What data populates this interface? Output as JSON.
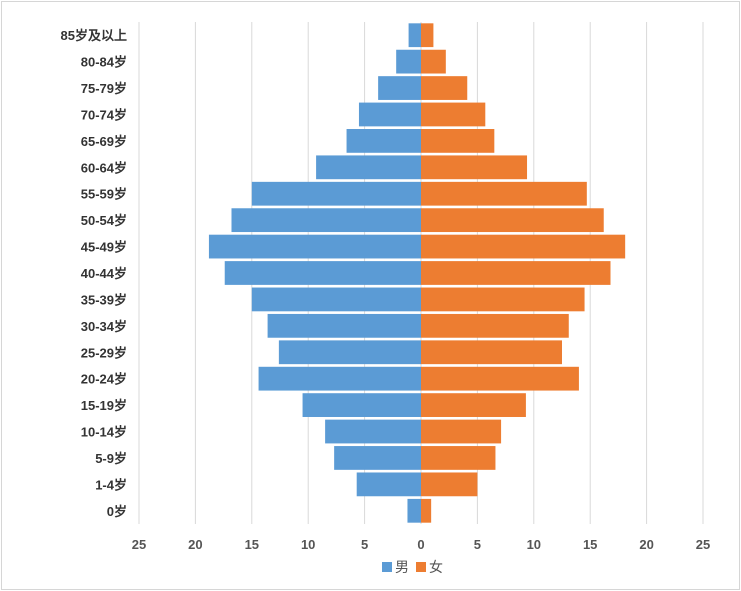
{
  "chart_data": {
    "type": "bar",
    "orientation": "horizontal",
    "layout": "population-pyramid",
    "title": "",
    "xlabel": "",
    "ylabel": "",
    "xlim": [
      -25,
      25
    ],
    "x_tick_values": [
      -25,
      -20,
      -15,
      -10,
      -5,
      0,
      5,
      10,
      15,
      20,
      25
    ],
    "x_tick_labels": [
      "25",
      "20",
      "15",
      "10",
      "5",
      "0",
      "5",
      "10",
      "15",
      "20",
      "25"
    ],
    "grid": true,
    "legend_position": "bottom",
    "categories": [
      "85岁及以上",
      "80-84岁",
      "75-79岁",
      "70-74岁",
      "65-69岁",
      "60-64岁",
      "55-59岁",
      "50-54岁",
      "45-49岁",
      "40-44岁",
      "35-39岁",
      "30-34岁",
      "25-29岁",
      "20-24岁",
      "15-19岁",
      "10-14岁",
      "5-9岁",
      "1-4岁",
      "0岁"
    ],
    "series": [
      {
        "name": "男",
        "color": "#5b9bd5",
        "side": "left",
        "values": [
          1.1,
          2.2,
          3.8,
          5.5,
          6.6,
          9.3,
          15.0,
          16.8,
          18.8,
          17.4,
          15.0,
          13.6,
          12.6,
          14.4,
          10.5,
          8.5,
          7.7,
          5.7,
          1.2
        ]
      },
      {
        "name": "女",
        "color": "#ed7d31",
        "side": "right",
        "values": [
          1.1,
          2.2,
          4.1,
          5.7,
          6.5,
          9.4,
          14.7,
          16.2,
          18.1,
          16.8,
          14.5,
          13.1,
          12.5,
          14.0,
          9.3,
          7.1,
          6.6,
          5.0,
          0.9
        ]
      }
    ]
  }
}
